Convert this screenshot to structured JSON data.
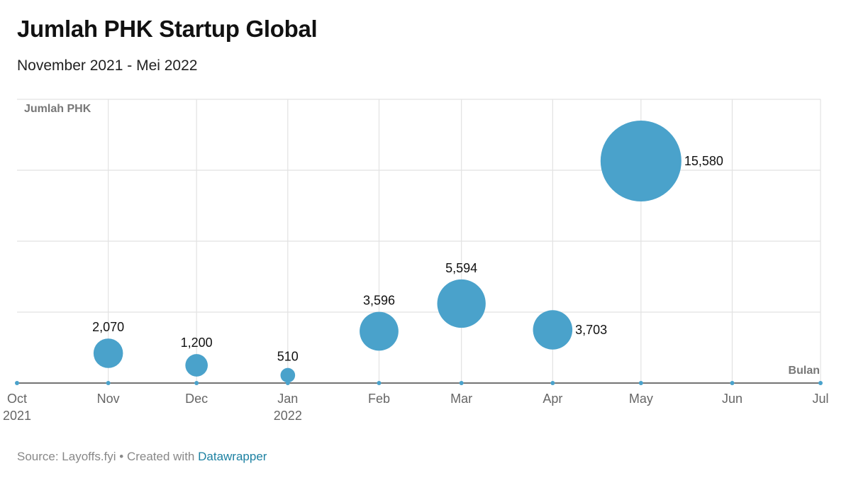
{
  "header": {
    "title": "Jumlah PHK Startup Global",
    "subtitle": "November 2021 - Mei 2022"
  },
  "footer": {
    "source_text": "Source: Layoffs.fyi",
    "separator": " • ",
    "created_with": "Created with ",
    "link_label": "Datawrapper"
  },
  "colors": {
    "bubble": "#4aa2cb",
    "axis": "#222222",
    "grid": "#e2e2e2",
    "axis_label": "#777777",
    "link": "#1d81a2"
  },
  "chart_data": {
    "type": "scatter",
    "title": "Jumlah PHK Startup Global",
    "subtitle": "November 2021 - Mei 2022",
    "xlabel": "Bulan",
    "ylabel": "Jumlah PHK",
    "grid": true,
    "bubble_size_encodes": "value",
    "x_ticks": [
      {
        "label": "Oct",
        "sublabel": "2021"
      },
      {
        "label": "Nov",
        "sublabel": ""
      },
      {
        "label": "Dec",
        "sublabel": ""
      },
      {
        "label": "Jan",
        "sublabel": "2022"
      },
      {
        "label": "Feb",
        "sublabel": ""
      },
      {
        "label": "Mar",
        "sublabel": ""
      },
      {
        "label": "Apr",
        "sublabel": ""
      },
      {
        "label": "May",
        "sublabel": ""
      },
      {
        "label": "Jun",
        "sublabel": ""
      },
      {
        "label": "Jul",
        "sublabel": ""
      }
    ],
    "x_range": [
      "2021-10-01",
      "2022-07-01"
    ],
    "ylim": [
      0,
      4
    ],
    "points": [
      {
        "x": "2021-11-01",
        "y": 0.42,
        "value": 2070,
        "label": "2,070",
        "label_position": "top"
      },
      {
        "x": "2021-12-01",
        "y": 0.25,
        "value": 1200,
        "label": "1,200",
        "label_position": "top"
      },
      {
        "x": "2022-01-01",
        "y": 0.11,
        "value": 510,
        "label": "510",
        "label_position": "top"
      },
      {
        "x": "2022-02-01",
        "y": 0.73,
        "value": 3596,
        "label": "3,596",
        "label_position": "top"
      },
      {
        "x": "2022-03-01",
        "y": 1.12,
        "value": 5594,
        "label": "5,594",
        "label_position": "top"
      },
      {
        "x": "2022-04-01",
        "y": 0.75,
        "value": 3703,
        "label": "3,703",
        "label_position": "right"
      },
      {
        "x": "2022-05-01",
        "y": 3.13,
        "value": 15580,
        "label": "15,580",
        "label_position": "right"
      }
    ]
  }
}
